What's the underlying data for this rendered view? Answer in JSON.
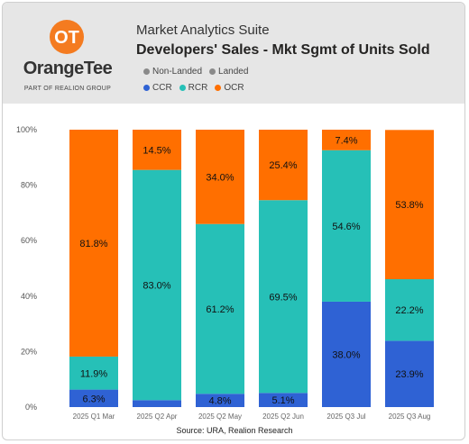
{
  "header": {
    "brand_name": "OrangeTee",
    "brand_tagline": "PART OF REALION GROUP",
    "app_title": "Market Analytics Suite"
  },
  "legend_property": [
    {
      "label": "Non-Landed",
      "color": "#8a8a8a"
    },
    {
      "label": "Landed",
      "color": "#8a8a8a"
    }
  ],
  "legend_region": [
    {
      "label": "CCR",
      "color": "#2f62d4"
    },
    {
      "label": "RCR",
      "color": "#26c0b7"
    },
    {
      "label": "OCR",
      "color": "#ff6f00"
    }
  ],
  "source": "Source: URA, Realion Research",
  "chart_data": {
    "type": "bar",
    "stacked": true,
    "title": "Developers' Sales - Mkt Sgmt of Units Sold",
    "categories": [
      "2025 Q1 Mar",
      "2025 Q2 Apr",
      "2025 Q2 May",
      "2025 Q2 Jun",
      "2025 Q3 Jul",
      "2025 Q3 Aug"
    ],
    "series": [
      {
        "name": "CCR",
        "color": "#2f62d4",
        "values": [
          6.3,
          2.5,
          4.8,
          5.1,
          38.0,
          23.9
        ],
        "labels": [
          "6.3%",
          "",
          "4.8%",
          "5.1%",
          "38.0%",
          "23.9%"
        ]
      },
      {
        "name": "RCR",
        "color": "#26c0b7",
        "values": [
          11.9,
          83.0,
          61.2,
          69.5,
          54.6,
          22.2
        ],
        "labels": [
          "11.9%",
          "83.0%",
          "61.2%",
          "69.5%",
          "54.6%",
          "22.2%"
        ]
      },
      {
        "name": "OCR",
        "color": "#ff6f00",
        "values": [
          81.8,
          14.5,
          34.0,
          25.4,
          7.4,
          53.8
        ],
        "labels": [
          "81.8%",
          "14.5%",
          "34.0%",
          "25.4%",
          "7.4%",
          "53.8%"
        ]
      }
    ],
    "ylim": [
      0,
      100
    ],
    "yticks": [
      "0%",
      "20%",
      "40%",
      "60%",
      "80%",
      "100%"
    ],
    "grid": false
  }
}
